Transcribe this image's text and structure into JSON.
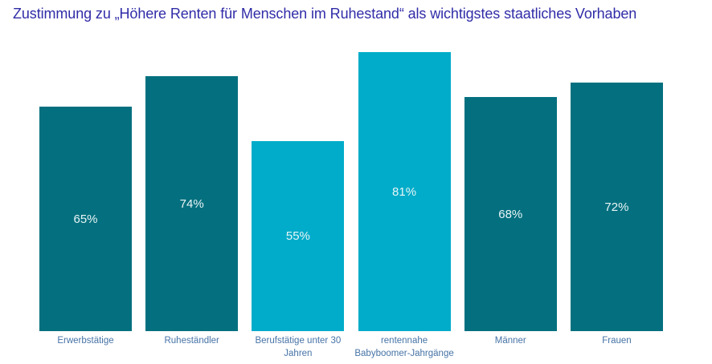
{
  "chart_data": {
    "type": "bar",
    "title": "Zustimmung zu „Höhere Renten für Menschen im Ruhestand“ als wichtigstes staatliches Vorhaben",
    "categories": [
      "Erwerbstätige",
      "Ruheständler",
      "Berufstätige unter 30\nJahren",
      "rentennahe\nBabyboomer-Jahrgänge",
      "Männer",
      "Frauen"
    ],
    "values": [
      65,
      74,
      55,
      81,
      68,
      72
    ],
    "value_labels": [
      "65%",
      "74%",
      "55%",
      "81%",
      "68%",
      "72%"
    ],
    "bar_colors": [
      "#04707F",
      "#04707F",
      "#00ACC9",
      "#00ACC9",
      "#04707F",
      "#04707F"
    ],
    "unit": "%",
    "ylim": [
      0,
      90
    ],
    "grid": false,
    "axes_hidden": true,
    "value_label_position": "inside-center",
    "legend": "none"
  },
  "colors": {
    "title_text": "#302CA8",
    "category_label_text": "#4673A6",
    "value_label_text": "#EAF5F7",
    "bar_dark_teal": "#04707F",
    "bar_light_cyan": "#00ACC9",
    "background": "#FFFFFF"
  }
}
